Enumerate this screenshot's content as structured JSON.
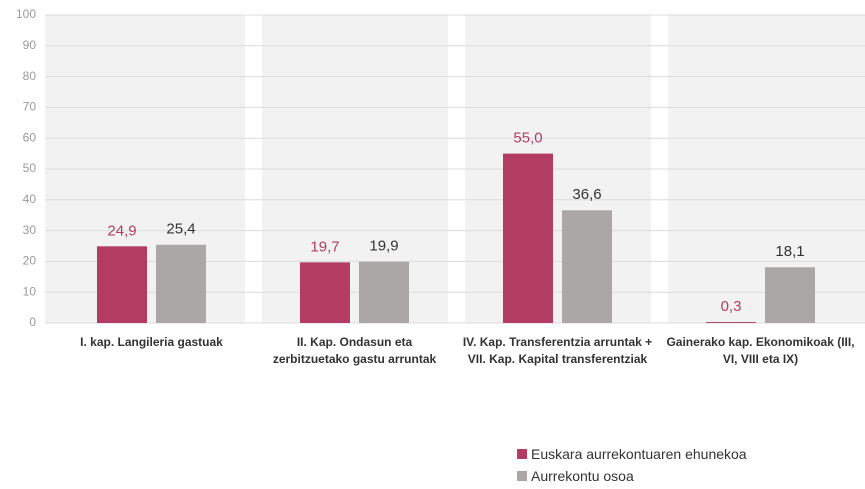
{
  "chart_data": {
    "type": "bar",
    "categories": [
      "I. kap. Langileria gastuak",
      "II. Kap. Ondasun eta zerbitzuetako gastu arruntak",
      "IV. Kap. Transferentzia arruntak + VII. Kap. Kapital transferentziak",
      "Gainerako kap. Ekonomikoak (III, VI, VIII eta IX)"
    ],
    "series": [
      {
        "name": "Euskara aurrekontuaren ehunekoa",
        "color": "#b33d62",
        "values": [
          24.9,
          19.7,
          55.0,
          0.3
        ],
        "value_labels": [
          "24,9",
          "19,7",
          "55,0",
          "0,3"
        ]
      },
      {
        "name": "Aurrekontu osoa",
        "color": "#aca7a7",
        "values": [
          25.4,
          19.9,
          36.6,
          18.1
        ],
        "value_labels": [
          "25,4",
          "19,9",
          "36,6",
          "18,1"
        ]
      }
    ],
    "ylim": [
      0,
      100
    ],
    "yticks": [
      0,
      10,
      20,
      30,
      40,
      50,
      60,
      70,
      80,
      90,
      100
    ],
    "grid": true
  }
}
